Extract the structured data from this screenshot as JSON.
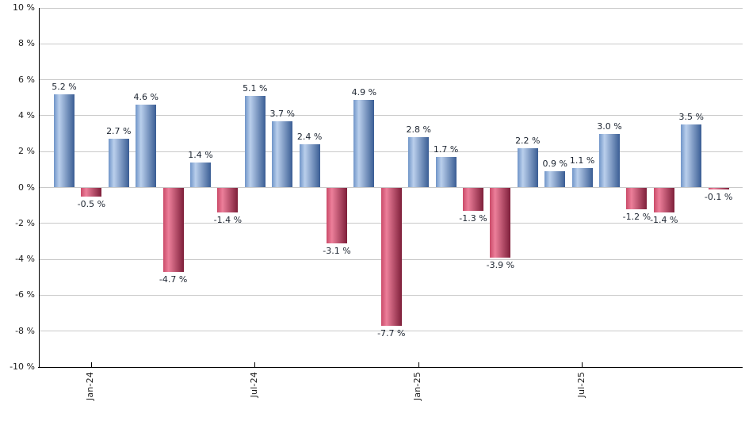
{
  "chart_data": {
    "type": "bar",
    "title": "",
    "unit": "%",
    "grid": true,
    "legend": "none",
    "ylim": [
      -10,
      10
    ],
    "colors": {
      "positive_bar": "#6b90c4",
      "negative_bar": "#c23a5c",
      "gridline": "#c9c9c9",
      "axis": "#000000",
      "label_text": "#1c2430",
      "background": "#ffffff"
    },
    "y_axis": {
      "ticks": [
        {
          "value": 10,
          "label": "10 %"
        },
        {
          "value": 8,
          "label": "8 %"
        },
        {
          "value": 6,
          "label": "6 %"
        },
        {
          "value": 4,
          "label": "4 %"
        },
        {
          "value": 2,
          "label": "2 %"
        },
        {
          "value": 0,
          "label": "0 %"
        },
        {
          "value": -2,
          "label": "-2 %"
        },
        {
          "value": -4,
          "label": "-4 %"
        },
        {
          "value": -6,
          "label": "-6 %"
        },
        {
          "value": -8,
          "label": "-8 %"
        },
        {
          "value": -10,
          "label": "-10 %"
        }
      ]
    },
    "x_axis": {
      "ticks": [
        {
          "bar_index": 1,
          "label": "Jan-24"
        },
        {
          "bar_index": 7,
          "label": "Jul-24"
        },
        {
          "bar_index": 13,
          "label": "Jan-25"
        },
        {
          "bar_index": 19,
          "label": "Jul-25"
        }
      ]
    },
    "bars": [
      {
        "month": "Dec-23",
        "value": 5.2,
        "label": "5.2 %"
      },
      {
        "month": "Jan-24",
        "value": -0.5,
        "label": "-0.5 %"
      },
      {
        "month": "Feb-24",
        "value": 2.7,
        "label": "2.7 %"
      },
      {
        "month": "Mar-24",
        "value": 4.6,
        "label": "4.6 %"
      },
      {
        "month": "Apr-24",
        "value": -4.7,
        "label": "-4.7 %"
      },
      {
        "month": "May-24",
        "value": 1.4,
        "label": "1.4 %"
      },
      {
        "month": "Jun-24",
        "value": -1.4,
        "label": "-1.4 %"
      },
      {
        "month": "Jul-24",
        "value": 5.1,
        "label": "5.1 %"
      },
      {
        "month": "Aug-24",
        "value": 3.7,
        "label": "3.7 %"
      },
      {
        "month": "Sep-24",
        "value": 2.4,
        "label": "2.4 %"
      },
      {
        "month": "Oct-24",
        "value": -3.1,
        "label": "-3.1 %"
      },
      {
        "month": "Nov-24",
        "value": 4.9,
        "label": "4.9 %"
      },
      {
        "month": "Dec-24",
        "value": -7.7,
        "label": "-7.7 %"
      },
      {
        "month": "Jan-25",
        "value": 2.8,
        "label": "2.8 %"
      },
      {
        "month": "Feb-25",
        "value": 1.7,
        "label": "1.7 %"
      },
      {
        "month": "Mar-25",
        "value": -1.3,
        "label": "-1.3 %"
      },
      {
        "month": "Apr-25",
        "value": -3.9,
        "label": "-3.9 %"
      },
      {
        "month": "May-25",
        "value": 2.2,
        "label": "2.2 %"
      },
      {
        "month": "Jun-25",
        "value": 0.9,
        "label": "0.9 %"
      },
      {
        "month": "Jul-25",
        "value": 1.1,
        "label": "1.1 %"
      },
      {
        "month": "Aug-25",
        "value": 3.0,
        "label": "3.0 %"
      },
      {
        "month": "Sep-25",
        "value": -1.2,
        "label": "-1.2 %"
      },
      {
        "month": "Oct-25",
        "value": -1.4,
        "label": "-1.4 %"
      },
      {
        "month": "Nov-25",
        "value": 3.5,
        "label": "3.5 %"
      },
      {
        "month": "Dec-25",
        "value": -0.1,
        "label": "-0.1 %"
      }
    ]
  }
}
